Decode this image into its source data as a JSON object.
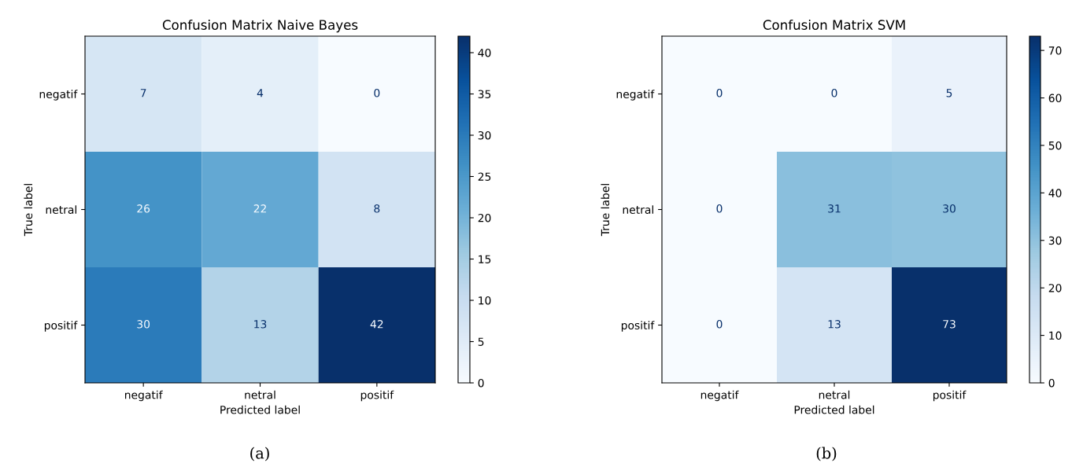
{
  "chart_data": [
    {
      "type": "heatmap",
      "title": "Confusion Matrix Naive Bayes",
      "xlabel": "Predicted label",
      "ylabel": "True label",
      "categories": [
        "negatif",
        "netral",
        "positif"
      ],
      "y_categories": [
        "negatif",
        "netral",
        "positif"
      ],
      "cells": [
        [
          7,
          4,
          0
        ],
        [
          26,
          22,
          8
        ],
        [
          30,
          13,
          42
        ]
      ],
      "clim": [
        0,
        42
      ],
      "cticks": [
        0,
        5,
        10,
        15,
        20,
        25,
        30,
        35,
        40
      ],
      "data_labels": true,
      "annotations": [
        "(a)"
      ]
    },
    {
      "type": "heatmap",
      "title": "Confusion Matrix SVM",
      "xlabel": "Predicted label",
      "ylabel": "True label",
      "categories": [
        "negatif",
        "netral",
        "positif"
      ],
      "y_categories": [
        "negatif",
        "netral",
        "positif"
      ],
      "cells": [
        [
          0,
          0,
          5
        ],
        [
          0,
          31,
          30
        ],
        [
          0,
          13,
          73
        ]
      ],
      "clim": [
        0,
        73
      ],
      "cticks": [
        0,
        10,
        20,
        30,
        40,
        50,
        60,
        70
      ],
      "data_labels": true,
      "annotations": [
        "(b)"
      ]
    }
  ]
}
